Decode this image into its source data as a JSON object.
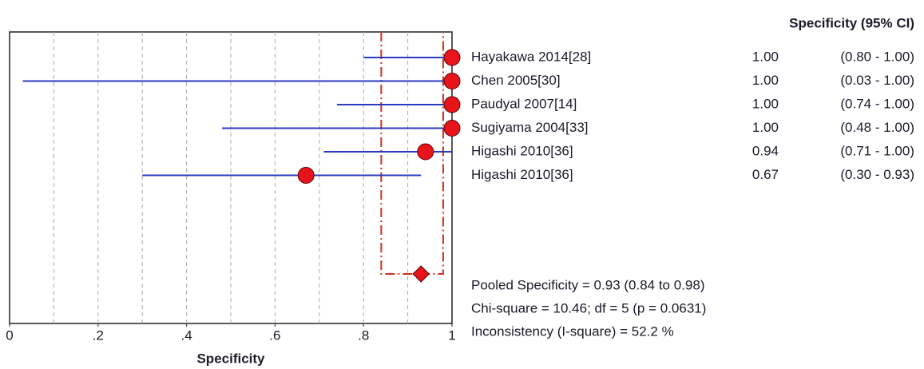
{
  "chart_data": {
    "type": "forest",
    "column_header": "Specificity (95% CI)",
    "x_label": "Specificity",
    "categories": [
      "Hayakawa 2014[28]",
      "Chen 2005[30]",
      "Paudyal 2007[14]",
      "Sugiyama 2004[33]",
      "Higashi 2010[36]",
      "Higashi 2010[36]"
    ],
    "values": [
      1,
      1,
      1,
      1,
      0.94,
      0.67
    ],
    "value_labels": [
      "1.00",
      "1.00",
      "1.00",
      "1.00",
      "0.94",
      "0.67"
    ],
    "ci_lower": [
      0.8,
      0.03,
      0.74,
      0.48,
      0.71,
      0.3
    ],
    "ci_upper": [
      1,
      1,
      1,
      1,
      1,
      0.93
    ],
    "ci_labels": [
      "(0.80 - 1.00)",
      "(0.03 - 1.00)",
      "(0.74 - 1.00)",
      "(0.48 - 1.00)",
      "(0.71 - 1.00)",
      "(0.30 - 0.93)"
    ],
    "pooled": {
      "value": 0.93,
      "lower": 0.84,
      "upper": 0.98
    },
    "annotations": [
      "Pooled Specificity = 0.93 (0.84 to 0.98)",
      "Chi-square = 10.46; df =  5 (p = 0.0631)",
      "Inconsistency (I-square) = 52.2 %"
    ],
    "xlim": [
      0,
      1
    ],
    "xticks": [
      0,
      {
        "value": 0.2,
        "label": ".2"
      },
      {
        "value": 0.4,
        "label": ".4"
      },
      {
        "value": 0.6,
        "label": ".6"
      },
      {
        "value": 0.8,
        "label": ".8"
      },
      1
    ],
    "grid_step_ticks": [
      0.1,
      0.2,
      0.3,
      0.4,
      0.5,
      0.6,
      0.7,
      0.8,
      0.9
    ],
    "ci_color": "#2a3abf",
    "marker_color": "#e8141c",
    "pooled_color": "#d0301c",
    "grid": true
  }
}
